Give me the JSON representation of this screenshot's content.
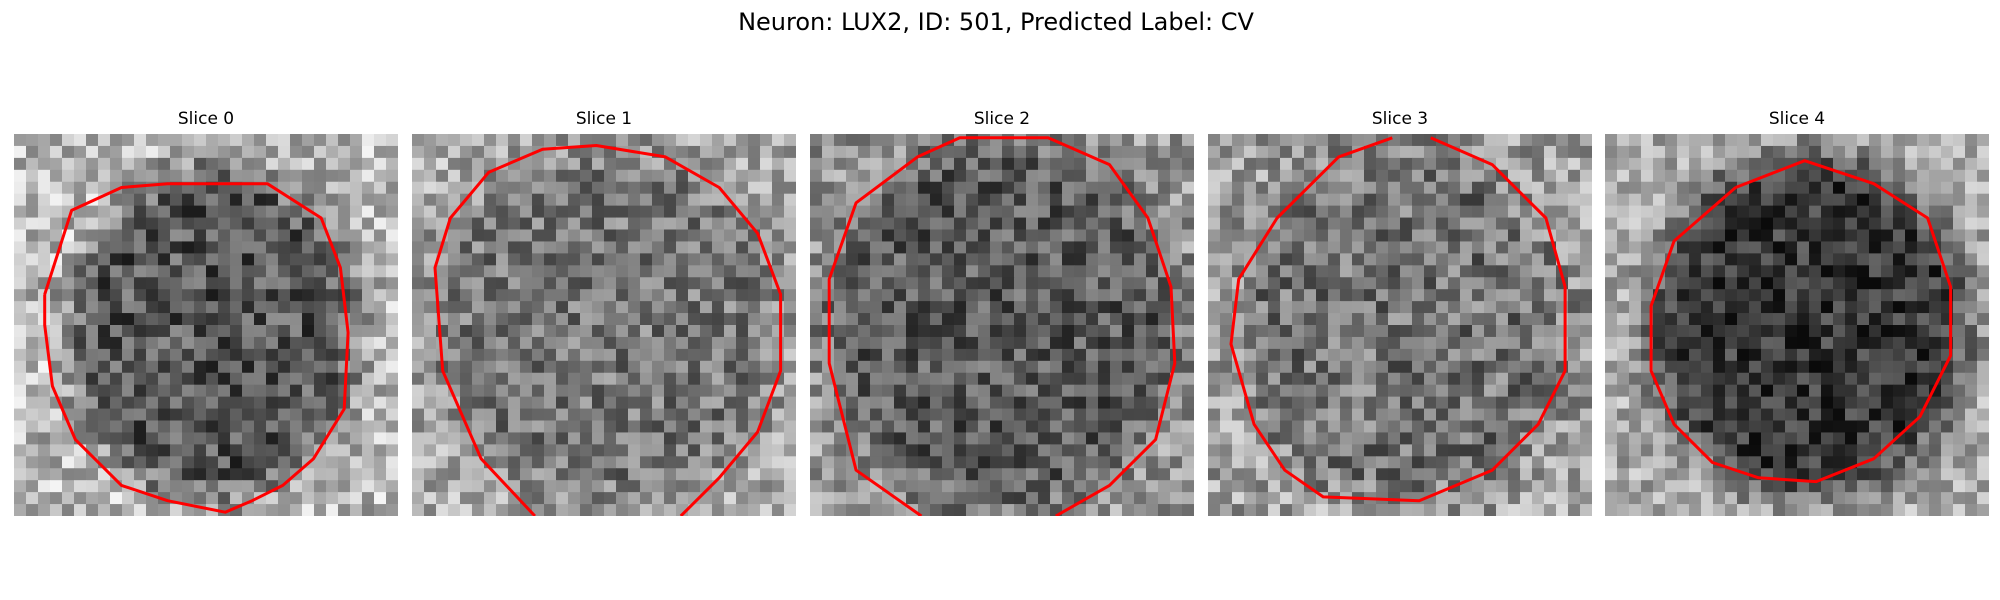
{
  "figure": {
    "title": "Neuron: LUX2, ID: 501, Predicted Label: CV"
  },
  "panels": [
    {
      "title": "Slice 0",
      "tone": "light-border",
      "seed": 11
    },
    {
      "title": "Slice 1",
      "tone": "mid",
      "seed": 23
    },
    {
      "title": "Slice 2",
      "tone": "mid-dark",
      "seed": 37
    },
    {
      "title": "Slice 3",
      "tone": "mid",
      "seed": 49
    },
    {
      "title": "Slice 4",
      "tone": "dark-center",
      "seed": 61
    }
  ],
  "colors": {
    "contour": "#ff0000",
    "background": "#ffffff"
  }
}
